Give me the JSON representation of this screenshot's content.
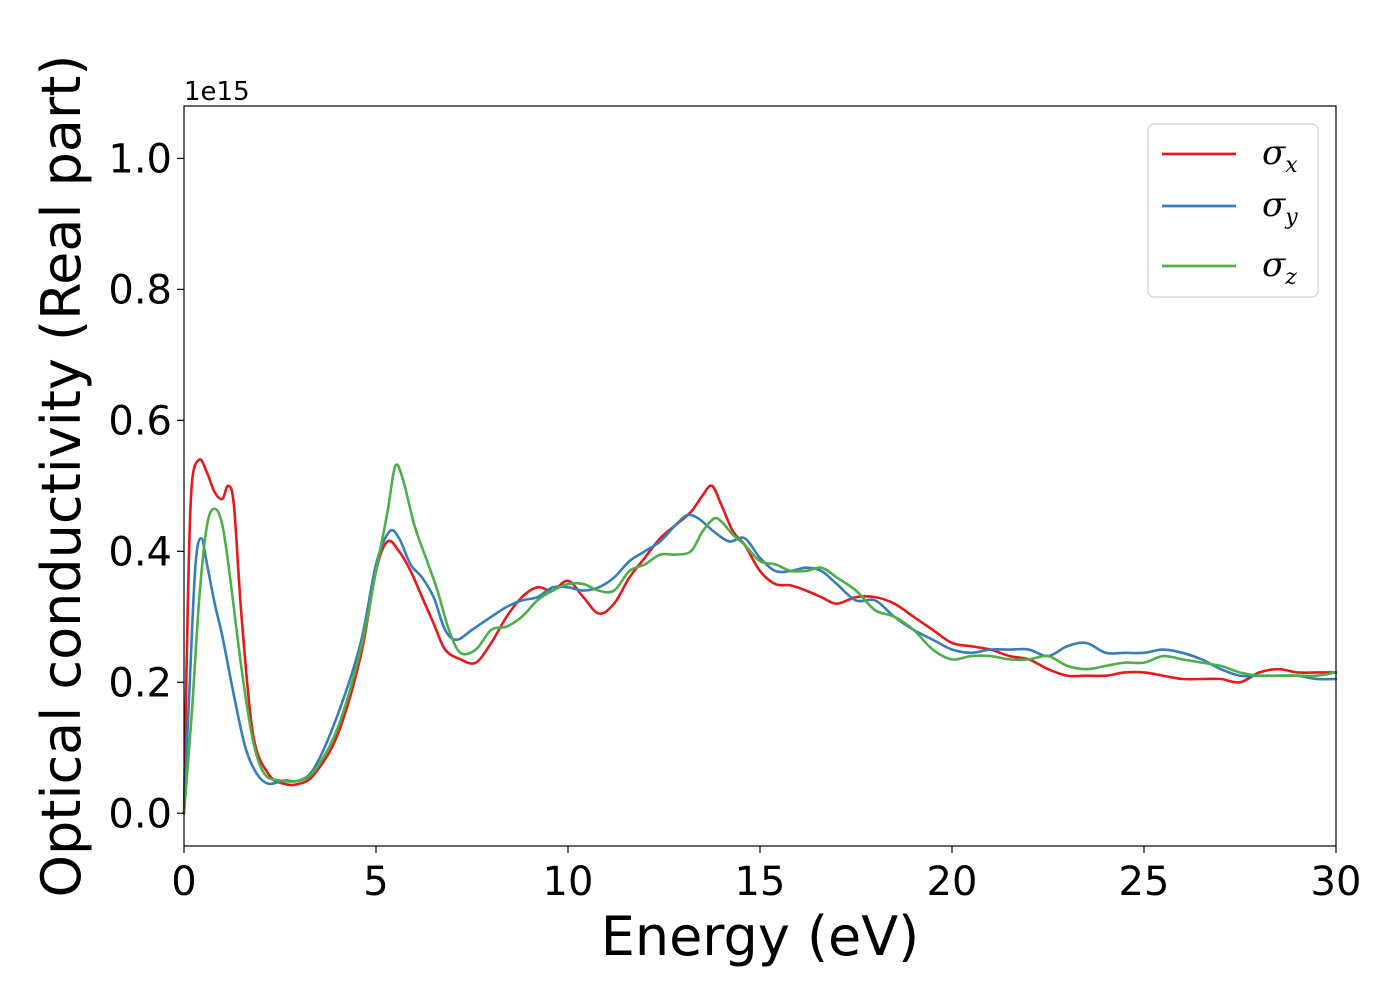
{
  "chart_data": {
    "type": "line",
    "title": "",
    "xlabel": "Energy (eV)",
    "ylabel": "Optical conductivity (Real part)",
    "y_offset_label": "1e15",
    "xlim": [
      0,
      30
    ],
    "ylim": [
      -0.05,
      1.08
    ],
    "xticks": [
      0,
      5,
      10,
      15,
      20,
      25,
      30
    ],
    "xtick_labels": [
      "0",
      "5",
      "10",
      "15",
      "20",
      "25",
      "30"
    ],
    "yticks": [
      0.0,
      0.2,
      0.4,
      0.6,
      0.8,
      1.0
    ],
    "ytick_labels": [
      "0.0",
      "0.2",
      "0.4",
      "0.6",
      "0.8",
      "1.0"
    ],
    "grid": false,
    "legend_position": "top-right",
    "series": [
      {
        "name": "σx",
        "legend_symbol": "σ",
        "legend_sub": "x",
        "color": "#e41a1c",
        "x": [
          0,
          0.1,
          0.2,
          0.4,
          0.6,
          0.8,
          1.0,
          1.15,
          1.3,
          1.5,
          1.8,
          2.2,
          2.6,
          3.0,
          3.4,
          4.0,
          4.6,
          5.0,
          5.3,
          5.6,
          5.9,
          6.2,
          6.5,
          6.8,
          7.2,
          7.6,
          8.0,
          8.4,
          8.8,
          9.2,
          9.6,
          10.0,
          10.4,
          10.8,
          11.2,
          11.6,
          12.0,
          12.4,
          12.8,
          13.2,
          13.5,
          13.75,
          14.0,
          14.3,
          14.6,
          15.0,
          15.4,
          15.8,
          16.2,
          16.6,
          17.0,
          17.5,
          18.0,
          18.5,
          19.0,
          19.5,
          20.0,
          20.5,
          21.0,
          21.5,
          22.0,
          22.5,
          23.0,
          23.5,
          24.0,
          24.5,
          25.0,
          25.5,
          26.0,
          26.5,
          27.0,
          27.5,
          28.0,
          28.5,
          29.0,
          29.5,
          30.0
        ],
        "y": [
          0.0,
          0.32,
          0.5,
          0.54,
          0.52,
          0.49,
          0.48,
          0.5,
          0.47,
          0.3,
          0.12,
          0.06,
          0.045,
          0.045,
          0.06,
          0.12,
          0.24,
          0.37,
          0.415,
          0.4,
          0.37,
          0.33,
          0.29,
          0.25,
          0.235,
          0.23,
          0.26,
          0.3,
          0.33,
          0.345,
          0.34,
          0.355,
          0.33,
          0.305,
          0.32,
          0.36,
          0.39,
          0.42,
          0.44,
          0.46,
          0.485,
          0.5,
          0.47,
          0.43,
          0.41,
          0.37,
          0.35,
          0.348,
          0.34,
          0.33,
          0.32,
          0.33,
          0.33,
          0.32,
          0.3,
          0.28,
          0.26,
          0.255,
          0.25,
          0.24,
          0.235,
          0.22,
          0.21,
          0.21,
          0.21,
          0.215,
          0.215,
          0.21,
          0.205,
          0.205,
          0.205,
          0.2,
          0.215,
          0.22,
          0.215,
          0.215,
          0.215
        ]
      },
      {
        "name": "σy",
        "legend_symbol": "σ",
        "legend_sub": "y",
        "color": "#377eb8",
        "x": [
          0,
          0.15,
          0.3,
          0.45,
          0.6,
          0.8,
          1.0,
          1.3,
          1.6,
          1.9,
          2.2,
          2.6,
          3.0,
          3.4,
          4.0,
          4.6,
          5.0,
          5.35,
          5.6,
          5.9,
          6.2,
          6.5,
          6.8,
          7.1,
          7.5,
          8.0,
          8.4,
          8.8,
          9.2,
          9.6,
          10.0,
          10.4,
          10.8,
          11.2,
          11.6,
          12.0,
          12.4,
          12.8,
          13.1,
          13.4,
          13.8,
          14.2,
          14.6,
          15.0,
          15.4,
          15.8,
          16.2,
          16.6,
          17.0,
          17.5,
          18.0,
          18.5,
          19.0,
          19.5,
          20.0,
          20.5,
          21.0,
          21.5,
          22.0,
          22.5,
          23.0,
          23.5,
          24.0,
          24.5,
          25.0,
          25.5,
          26.0,
          26.5,
          27.0,
          27.5,
          28.0,
          28.5,
          29.0,
          29.5,
          30.0
        ],
        "y": [
          0.0,
          0.2,
          0.38,
          0.42,
          0.38,
          0.32,
          0.27,
          0.18,
          0.1,
          0.06,
          0.045,
          0.05,
          0.05,
          0.07,
          0.15,
          0.26,
          0.38,
          0.43,
          0.42,
          0.38,
          0.36,
          0.33,
          0.28,
          0.265,
          0.28,
          0.3,
          0.315,
          0.325,
          0.33,
          0.345,
          0.345,
          0.34,
          0.345,
          0.36,
          0.385,
          0.4,
          0.415,
          0.44,
          0.455,
          0.45,
          0.43,
          0.415,
          0.42,
          0.39,
          0.37,
          0.37,
          0.375,
          0.37,
          0.35,
          0.325,
          0.325,
          0.3,
          0.28,
          0.265,
          0.25,
          0.245,
          0.25,
          0.25,
          0.25,
          0.24,
          0.255,
          0.26,
          0.245,
          0.245,
          0.245,
          0.25,
          0.245,
          0.235,
          0.22,
          0.21,
          0.21,
          0.21,
          0.21,
          0.205,
          0.205
        ]
      },
      {
        "name": "σz",
        "legend_symbol": "σ",
        "legend_sub": "z",
        "color": "#4daf4a",
        "x": [
          0,
          0.2,
          0.4,
          0.6,
          0.8,
          1.0,
          1.2,
          1.5,
          1.8,
          2.1,
          2.5,
          3.0,
          3.4,
          4.0,
          4.6,
          5.0,
          5.3,
          5.5,
          5.7,
          6.0,
          6.3,
          6.6,
          6.9,
          7.2,
          7.6,
          8.0,
          8.4,
          8.8,
          9.2,
          9.6,
          10.0,
          10.4,
          10.8,
          11.2,
          11.6,
          12.0,
          12.4,
          12.8,
          13.2,
          13.5,
          13.8,
          14.0,
          14.3,
          14.6,
          15.0,
          15.4,
          15.8,
          16.2,
          16.6,
          17.0,
          17.5,
          18.0,
          18.5,
          19.0,
          19.5,
          20.0,
          20.5,
          21.0,
          21.5,
          22.0,
          22.5,
          23.0,
          23.5,
          24.0,
          24.5,
          25.0,
          25.5,
          26.0,
          26.5,
          27.0,
          27.5,
          28.0,
          28.5,
          29.0,
          29.5,
          30.0
        ],
        "y": [
          0.0,
          0.15,
          0.33,
          0.44,
          0.465,
          0.44,
          0.36,
          0.22,
          0.11,
          0.06,
          0.05,
          0.05,
          0.065,
          0.13,
          0.25,
          0.37,
          0.46,
          0.53,
          0.51,
          0.44,
          0.39,
          0.34,
          0.28,
          0.245,
          0.25,
          0.28,
          0.285,
          0.3,
          0.325,
          0.34,
          0.35,
          0.35,
          0.34,
          0.34,
          0.37,
          0.38,
          0.395,
          0.395,
          0.4,
          0.43,
          0.45,
          0.445,
          0.425,
          0.41,
          0.385,
          0.38,
          0.37,
          0.37,
          0.375,
          0.36,
          0.34,
          0.31,
          0.3,
          0.28,
          0.25,
          0.235,
          0.24,
          0.24,
          0.235,
          0.235,
          0.24,
          0.225,
          0.22,
          0.225,
          0.23,
          0.23,
          0.24,
          0.235,
          0.23,
          0.225,
          0.215,
          0.21,
          0.21,
          0.21,
          0.21,
          0.215
        ]
      }
    ]
  }
}
